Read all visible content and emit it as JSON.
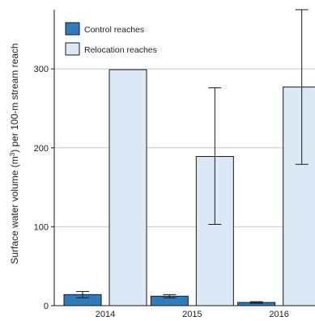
{
  "chart_data": {
    "type": "bar",
    "categories": [
      "2014",
      "2015",
      "2016"
    ],
    "series": [
      {
        "name": "Control reaches",
        "color": "#2f7bbd",
        "values": [
          14,
          12,
          4
        ],
        "error_low": [
          10,
          10,
          3
        ],
        "error_high": [
          18,
          14,
          5
        ]
      },
      {
        "name": "Relocation reaches",
        "color": "#dbe8f5",
        "values": [
          299,
          189,
          277
        ],
        "error_low": [
          null,
          103,
          179
        ],
        "error_high": [
          null,
          276,
          375
        ]
      }
    ],
    "ylabel_prefix": "Surface water volume (m",
    "ylabel_sup": "3",
    "ylabel_suffix": ") per 100-m stream reach",
    "ylim": [
      0,
      375
    ],
    "yticks": [
      0,
      100,
      200,
      300
    ],
    "grid": true,
    "legend_position": "top-left"
  }
}
